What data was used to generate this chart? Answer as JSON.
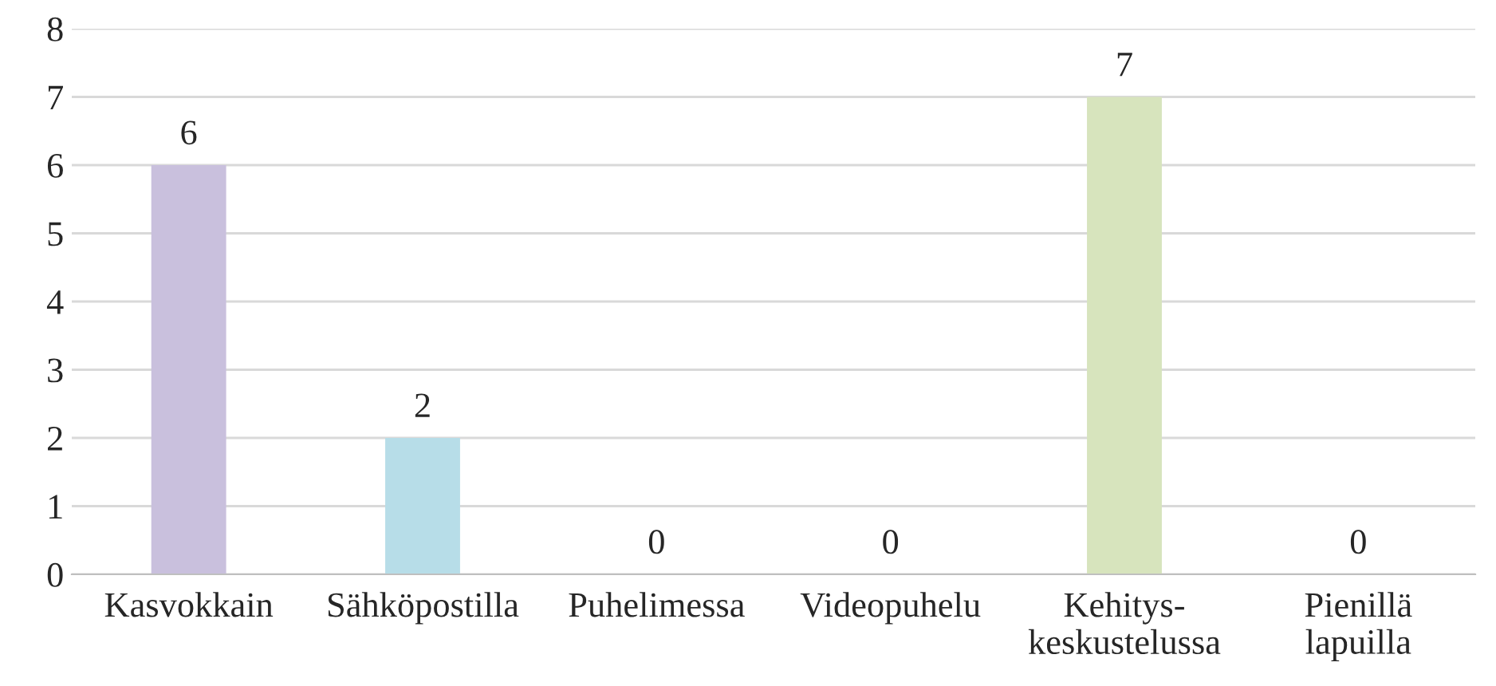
{
  "chart_data": {
    "type": "bar",
    "categories": [
      "Kasvokkain",
      "Sähköpostilla",
      "Puhelimessa",
      "Videopuhelu",
      "Kehitys-\nkeskustelussa",
      "Pienillä\nlapuilla"
    ],
    "values": [
      6,
      2,
      0,
      0,
      7,
      0
    ],
    "colors": [
      "#c9c0dd",
      "#b7dde8",
      null,
      null,
      "#d7e4bd",
      null
    ],
    "ylim": [
      0,
      8
    ],
    "yticks": [
      0,
      1,
      2,
      3,
      4,
      5,
      6,
      7,
      8
    ],
    "grid": "y",
    "data_labels": true,
    "legend": false
  }
}
